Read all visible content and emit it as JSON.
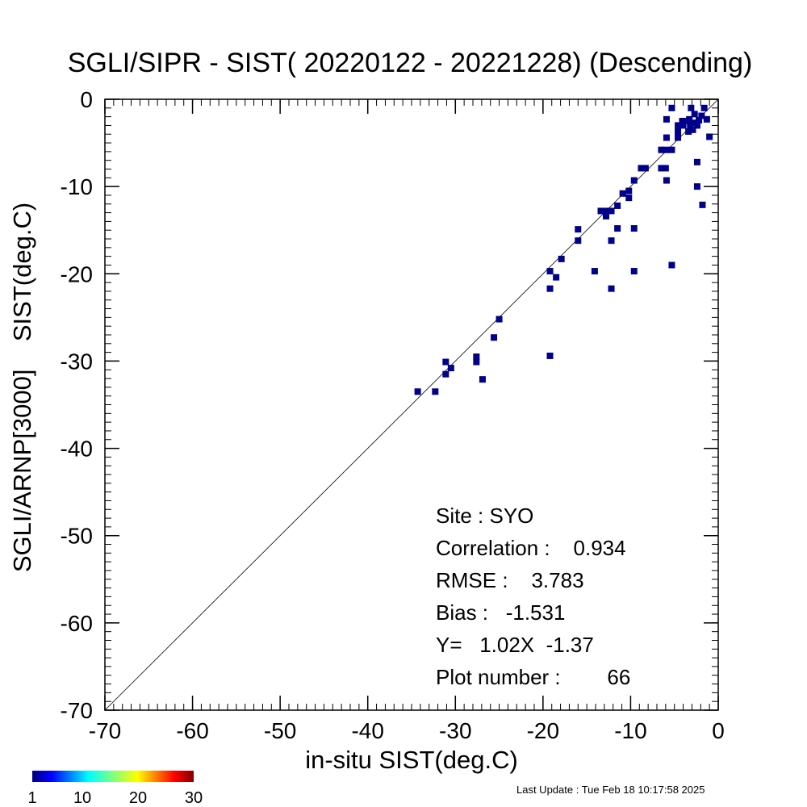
{
  "chart_data": {
    "type": "scatter",
    "title": "SGLI/SIPR - SIST( 20220122 - 20221228) (Descending)",
    "xlabel": "in-situ SIST(deg.C)",
    "ylabel": "SGLI/ARNP[3000]    SIST(deg.C)",
    "xlim": [
      -70,
      0
    ],
    "ylim": [
      -70,
      0
    ],
    "xticks": [
      -70,
      -60,
      -50,
      -40,
      -30,
      -20,
      -10,
      0
    ],
    "yticks": [
      0,
      -10,
      -20,
      -30,
      -40,
      -50,
      -60,
      -70
    ],
    "xtick_labels": [
      "-70",
      "-60",
      "-50",
      "-40",
      "-30",
      "-20",
      "-10",
      "0"
    ],
    "ytick_labels": [
      "0",
      "-10",
      "-20",
      "-30",
      "-40",
      "-50",
      "-60",
      "-70"
    ],
    "reference_line": "y = x",
    "marker_color": "#00008b",
    "points": [
      [
        -34.3,
        -33.5
      ],
      [
        -32.3,
        -33.5
      ],
      [
        -31.1,
        -30.1
      ],
      [
        -31.1,
        -31.5
      ],
      [
        -30.5,
        -30.8
      ],
      [
        -27.6,
        -29.5
      ],
      [
        -27.6,
        -30.1
      ],
      [
        -26.9,
        -32.1
      ],
      [
        -25.6,
        -27.3
      ],
      [
        -25.0,
        -25.2
      ],
      [
        -19.2,
        -29.4
      ],
      [
        -19.2,
        -19.7
      ],
      [
        -19.2,
        -21.7
      ],
      [
        -18.5,
        -20.4
      ],
      [
        -17.9,
        -18.3
      ],
      [
        -16.0,
        -14.9
      ],
      [
        -16.0,
        -16.2
      ],
      [
        -14.1,
        -19.7
      ],
      [
        -13.4,
        -12.8
      ],
      [
        -12.8,
        -12.8
      ],
      [
        -12.8,
        -13.4
      ],
      [
        -12.2,
        -12.8
      ],
      [
        -12.2,
        -16.2
      ],
      [
        -12.2,
        -21.7
      ],
      [
        -11.5,
        -12.2
      ],
      [
        -11.5,
        -14.8
      ],
      [
        -10.9,
        -10.8
      ],
      [
        -10.2,
        -10.5
      ],
      [
        -10.2,
        -11.3
      ],
      [
        -9.6,
        -9.3
      ],
      [
        -9.6,
        -14.8
      ],
      [
        -9.6,
        -19.7
      ],
      [
        -8.8,
        -7.9
      ],
      [
        -8.3,
        -7.9
      ],
      [
        -6.5,
        -5.8
      ],
      [
        -6.5,
        -7.9
      ],
      [
        -6.0,
        -5.8
      ],
      [
        -6.0,
        -7.9
      ],
      [
        -5.9,
        -9.3
      ],
      [
        -5.9,
        -4.4
      ],
      [
        -5.9,
        -2.3
      ],
      [
        -5.3,
        -1.0
      ],
      [
        -5.3,
        -5.8
      ],
      [
        -5.3,
        -19.0
      ],
      [
        -4.6,
        -3.0
      ],
      [
        -4.6,
        -3.7
      ],
      [
        -4.6,
        -4.4
      ],
      [
        -4.1,
        -2.5
      ],
      [
        -4.0,
        -3.0
      ],
      [
        -3.5,
        -2.5
      ],
      [
        -3.4,
        -3.7
      ],
      [
        -3.3,
        -2.3
      ],
      [
        -3.2,
        -3.0
      ],
      [
        -3.1,
        -1.0
      ],
      [
        -2.9,
        -3.5
      ],
      [
        -2.8,
        -2.7
      ],
      [
        -2.7,
        -1.7
      ],
      [
        -2.4,
        -3.0
      ],
      [
        -2.4,
        -7.2
      ],
      [
        -2.4,
        -10.0
      ],
      [
        -2.2,
        -2.4
      ],
      [
        -1.8,
        -12.1
      ],
      [
        -1.6,
        -1.0
      ],
      [
        -1.3,
        -2.3
      ],
      [
        -1.0,
        -4.3
      ],
      [
        -1.9,
        -1.9
      ]
    ]
  },
  "stats": {
    "site": "Site : SYO",
    "correlation": "Correlation :    0.934",
    "rmse": "RMSE :    3.783",
    "bias": "Bias :   -1.531",
    "regression": "Y=   1.02X  -1.37",
    "plot_number": "Plot number :        66"
  },
  "colorbar": {
    "labels": [
      "1",
      "10",
      "20",
      "30"
    ],
    "values": [
      1,
      10,
      20,
      30
    ]
  },
  "footer": {
    "last_update": "Last Update : Tue Feb 18 10:17:58 2025"
  }
}
